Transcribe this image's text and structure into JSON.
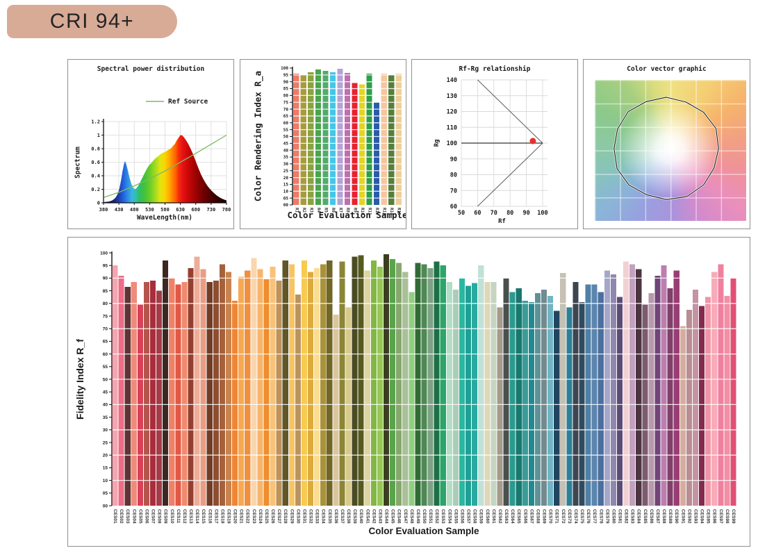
{
  "header": {
    "title": "CRI 94+"
  },
  "colors": {
    "chip_bg": "#d8ab97",
    "chip_text": "#242424",
    "panel_border": "#8f8f8f",
    "axis": "#1a1a1a",
    "grid_light": "#d9d9d9",
    "bar_gridline": "rgba(255,255,255,0.85)"
  },
  "chart_data": [
    {
      "id": "spd",
      "type": "area",
      "title": "Spectral power distribution",
      "xlabel": "WaveLength(nm)",
      "ylabel": "Spectrum",
      "legend": "Ref Source",
      "legend_color": "#7cb963",
      "xlim": [
        380,
        780
      ],
      "ylim": [
        0,
        1.2
      ],
      "x_ticks": [
        380,
        430,
        480,
        530,
        580,
        630,
        680,
        730,
        780
      ],
      "y_ticks": [
        0,
        0.2,
        0.4,
        0.6,
        0.8,
        1,
        1.2
      ],
      "grid": true,
      "gradient_stops": [
        [
          0,
          "#141432"
        ],
        [
          0.075,
          "#1a2060"
        ],
        [
          0.125,
          "#1e3fae"
        ],
        [
          0.16,
          "#2060e0"
        ],
        [
          0.195,
          "#2e8ae4"
        ],
        [
          0.23,
          "#3ab4e0"
        ],
        [
          0.26,
          "#30c0b0"
        ],
        [
          0.295,
          "#34bc62"
        ],
        [
          0.33,
          "#40c23c"
        ],
        [
          0.375,
          "#66cc28"
        ],
        [
          0.425,
          "#a8dc1e"
        ],
        [
          0.46,
          "#e0e414"
        ],
        [
          0.495,
          "#f8d800"
        ],
        [
          0.53,
          "#ffb000"
        ],
        [
          0.56,
          "#ff8400"
        ],
        [
          0.59,
          "#ff5a00"
        ],
        [
          0.61,
          "#f62e0c"
        ],
        [
          0.64,
          "#e81414"
        ],
        [
          0.675,
          "#d40a0a"
        ],
        [
          0.725,
          "#ae0404"
        ],
        [
          0.79,
          "#800000"
        ],
        [
          0.85,
          "#580000"
        ],
        [
          0.925,
          "#340000"
        ],
        [
          1,
          "#1a0000"
        ]
      ],
      "spectrum": [
        [
          380,
          0.01
        ],
        [
          398,
          0.02
        ],
        [
          408,
          0.035
        ],
        [
          418,
          0.07
        ],
        [
          425,
          0.12
        ],
        [
          431,
          0.2
        ],
        [
          437,
          0.33
        ],
        [
          442,
          0.47
        ],
        [
          447,
          0.58
        ],
        [
          450,
          0.615
        ],
        [
          454,
          0.57
        ],
        [
          459,
          0.48
        ],
        [
          464,
          0.38
        ],
        [
          470,
          0.29
        ],
        [
          476,
          0.23
        ],
        [
          481,
          0.2
        ],
        [
          487,
          0.215
        ],
        [
          494,
          0.26
        ],
        [
          501,
          0.32
        ],
        [
          508,
          0.385
        ],
        [
          515,
          0.45
        ],
        [
          522,
          0.51
        ],
        [
          529,
          0.56
        ],
        [
          536,
          0.59
        ],
        [
          543,
          0.63
        ],
        [
          550,
          0.66
        ],
        [
          558,
          0.69
        ],
        [
          566,
          0.72
        ],
        [
          574,
          0.74
        ],
        [
          582,
          0.755
        ],
        [
          590,
          0.78
        ],
        [
          598,
          0.8
        ],
        [
          606,
          0.84
        ],
        [
          612,
          0.87
        ],
        [
          618,
          0.92
        ],
        [
          624,
          0.96
        ],
        [
          630,
          1.0
        ],
        [
          636,
          0.995
        ],
        [
          642,
          0.965
        ],
        [
          648,
          0.925
        ],
        [
          655,
          0.875
        ],
        [
          662,
          0.81
        ],
        [
          669,
          0.74
        ],
        [
          676,
          0.66
        ],
        [
          683,
          0.575
        ],
        [
          690,
          0.495
        ],
        [
          697,
          0.42
        ],
        [
          704,
          0.355
        ],
        [
          711,
          0.3
        ],
        [
          718,
          0.25
        ],
        [
          725,
          0.21
        ],
        [
          732,
          0.175
        ],
        [
          740,
          0.14
        ],
        [
          748,
          0.11
        ],
        [
          756,
          0.085
        ],
        [
          764,
          0.065
        ],
        [
          772,
          0.048
        ],
        [
          780,
          0.035
        ]
      ],
      "ref_line": [
        [
          380,
          0.08
        ],
        [
          430,
          0.155
        ],
        [
          480,
          0.25
        ],
        [
          530,
          0.355
        ],
        [
          580,
          0.47
        ],
        [
          630,
          0.6
        ],
        [
          680,
          0.73
        ],
        [
          730,
          0.865
        ],
        [
          780,
          1.0
        ]
      ]
    },
    {
      "id": "ra",
      "type": "bar",
      "title": "",
      "xlabel": "Color Evaluation Sample",
      "ylabel": "Color Rendering Index R_a",
      "ylim": [
        0,
        100
      ],
      "y_tick_step": 5,
      "categories": [
        "R1",
        "R2",
        "R3",
        "R4",
        "R5",
        "R6",
        "R7",
        "R8",
        "R9",
        "R10",
        "R11",
        "R12",
        "R13",
        "R14",
        "R15"
      ],
      "values": [
        96,
        95,
        97,
        99,
        98,
        97,
        99.5,
        96.5,
        89,
        88,
        96,
        75,
        96,
        95,
        96
      ],
      "colors": [
        "#ee7a68",
        "#a89b3c",
        "#8aa23f",
        "#4aa44e",
        "#52ab6b",
        "#45c6e8",
        "#b5a3d6",
        "#bd6fae",
        "#e8212e",
        "#e3d522",
        "#2e9e49",
        "#2a5ca8",
        "#f5c6a0",
        "#557f3a",
        "#edcf9a"
      ]
    },
    {
      "id": "rfrg",
      "type": "scatter",
      "title": "Rf-Rg relationship",
      "xlabel": "Rf",
      "ylabel": "Rg",
      "xlim": [
        50,
        103
      ],
      "ylim": [
        60,
        140
      ],
      "x_ticks": [
        50,
        60,
        70,
        80,
        90,
        100
      ],
      "y_ticks": [
        60,
        70,
        80,
        90,
        100,
        110,
        120,
        130,
        140
      ],
      "grid": true,
      "point": {
        "rf": 94,
        "rg": 101.3,
        "color": "#e8312a"
      },
      "envelope_lines": [
        [
          [
            60,
            140
          ],
          [
            100,
            100
          ]
        ],
        [
          [
            60,
            60
          ],
          [
            100,
            100
          ]
        ]
      ],
      "hline": [
        [
          50,
          100
        ],
        [
          100,
          100
        ]
      ]
    },
    {
      "id": "cvg",
      "type": "other",
      "title": "Color vector graphic",
      "polygon_factors": [
        1.0,
        0.98,
        1.0,
        1.02,
        0.99,
        0.98,
        1.0,
        1.01,
        0.99,
        0.97,
        1.0,
        1.01,
        0.99,
        1.0,
        1.02,
        0.99
      ],
      "grid_cells": 6
    },
    {
      "id": "rf",
      "type": "bar",
      "title": "",
      "xlabel": "Color Evaluation Sample",
      "ylabel": "Fidelity Index R_f",
      "ylim": [
        0,
        100
      ],
      "y_tick_step": 5,
      "categories": [
        "CES01",
        "CES02",
        "CES03",
        "CES04",
        "CES05",
        "CES06",
        "CES07",
        "CES08",
        "CES09",
        "CES10",
        "CES11",
        "CES12",
        "CES13",
        "CES14",
        "CES15",
        "CES16",
        "CES17",
        "CES18",
        "CES19",
        "CES20",
        "CES21",
        "CES22",
        "CES23",
        "CES24",
        "CES25",
        "CES26",
        "CES27",
        "CES28",
        "CES29",
        "CES30",
        "CES31",
        "CES32",
        "CES33",
        "CES34",
        "CES35",
        "CES36",
        "CES37",
        "CES38",
        "CES39",
        "CES40",
        "CES41",
        "CES42",
        "CES43",
        "CES44",
        "CES45",
        "CES46",
        "CES47",
        "CES48",
        "CES49",
        "CES50",
        "CES51",
        "CES52",
        "CES53",
        "CES54",
        "CES55",
        "CES56",
        "CES57",
        "CES58",
        "CES59",
        "CES60",
        "CES61",
        "CES62",
        "CES63",
        "CES64",
        "CES65",
        "CES66",
        "CES67",
        "CES68",
        "CES69",
        "CES70",
        "CES71",
        "CES72",
        "CES73",
        "CES74",
        "CES75",
        "CES76",
        "CES77",
        "CES78",
        "CES79",
        "CES80",
        "CES81",
        "CES82",
        "CES83",
        "CES84",
        "CES85",
        "CES86",
        "CES87",
        "CES88",
        "CES89",
        "CES90",
        "CES91",
        "CES92",
        "CES93",
        "CES94",
        "CES95",
        "CES96",
        "CES97",
        "CES98",
        "CES99"
      ],
      "values": [
        95,
        91,
        86.5,
        88.5,
        79.5,
        88.5,
        89,
        85,
        97,
        90,
        87.5,
        88.5,
        94,
        98.5,
        93.5,
        88.5,
        89,
        95.5,
        92.5,
        81,
        90.5,
        93,
        98,
        93.5,
        89.5,
        94.5,
        89,
        97,
        95.5,
        83.5,
        97,
        92.5,
        94,
        95.5,
        97,
        75.5,
        96.5,
        78.5,
        98.5,
        99,
        93,
        97,
        94.5,
        99.5,
        97.5,
        96,
        92.5,
        84.5,
        96,
        95.5,
        94,
        96.5,
        95,
        88.5,
        85.5,
        90,
        87,
        88,
        95,
        88.5,
        88.5,
        78.5,
        90,
        84.5,
        86,
        81,
        80.5,
        84,
        85.5,
        83,
        77,
        92,
        78.5,
        88.5,
        80.5,
        87.5,
        87.5,
        84.5,
        93,
        91.5,
        82.5,
        96.5,
        95.5,
        93.5,
        79.5,
        84,
        91,
        95,
        86,
        93,
        71,
        77.5,
        85.5,
        79,
        82.5,
        92.5,
        95.5,
        83,
        90
      ],
      "colors": [
        "#f3a5b0",
        "#ed6d87",
        "#5e3434",
        "#f08a7b",
        "#d84158",
        "#b4554c",
        "#a82d3d",
        "#a43b46",
        "#3d2722",
        "#f08066",
        "#e15844",
        "#f08b70",
        "#95402f",
        "#ecae9a",
        "#e89d84",
        "#713d26",
        "#8e4e30",
        "#a4613c",
        "#c8834e",
        "#f08534",
        "#f6a953",
        "#ee9040",
        "#f8d6ae",
        "#f6b56c",
        "#ee8e2c",
        "#f8c278",
        "#bd925b",
        "#615628",
        "#f8c462",
        "#ba945e",
        "#f8ca50",
        "#dcab3e",
        "#fadc92",
        "#aa9238",
        "#716528",
        "#dac69c",
        "#8b8536",
        "#d7ca8c",
        "#4b4b24",
        "#565a20",
        "#ded4a2",
        "#82b742",
        "#96c755",
        "#3b3e21",
        "#58a44a",
        "#86a76e",
        "#aac098",
        "#90cf80",
        "#2f6c35",
        "#508854",
        "#7ea285",
        "#1d6f46",
        "#2ca56b",
        "#b3ddc5",
        "#aacdb8",
        "#2ab7a1",
        "#209f94",
        "#28aaa0",
        "#c0e1d8",
        "#ded8b6",
        "#c4d5c2",
        "#a49b8c",
        "#48504d",
        "#289a8e",
        "#187870",
        "#3c9b97",
        "#1f8b90",
        "#609197",
        "#718b90",
        "#70b5c3",
        "#214560",
        "#c6c1b3",
        "#2b8097",
        "#3d4551",
        "#304b5f",
        "#5080a6",
        "#5c85ae",
        "#4b6f9f",
        "#a4a7c9",
        "#9087ae",
        "#5e4b75",
        "#f1d0d4",
        "#c1a1be",
        "#4b3541",
        "#7d5b6f",
        "#b999ac",
        "#704479",
        "#be7db1",
        "#7f4069",
        "#993e75",
        "#d5ad9f",
        "#b88e93",
        "#c593a3",
        "#842a4f",
        "#f094a6",
        "#f7abb9",
        "#ef809e",
        "#f18fa5",
        "#e24f75"
      ]
    }
  ]
}
